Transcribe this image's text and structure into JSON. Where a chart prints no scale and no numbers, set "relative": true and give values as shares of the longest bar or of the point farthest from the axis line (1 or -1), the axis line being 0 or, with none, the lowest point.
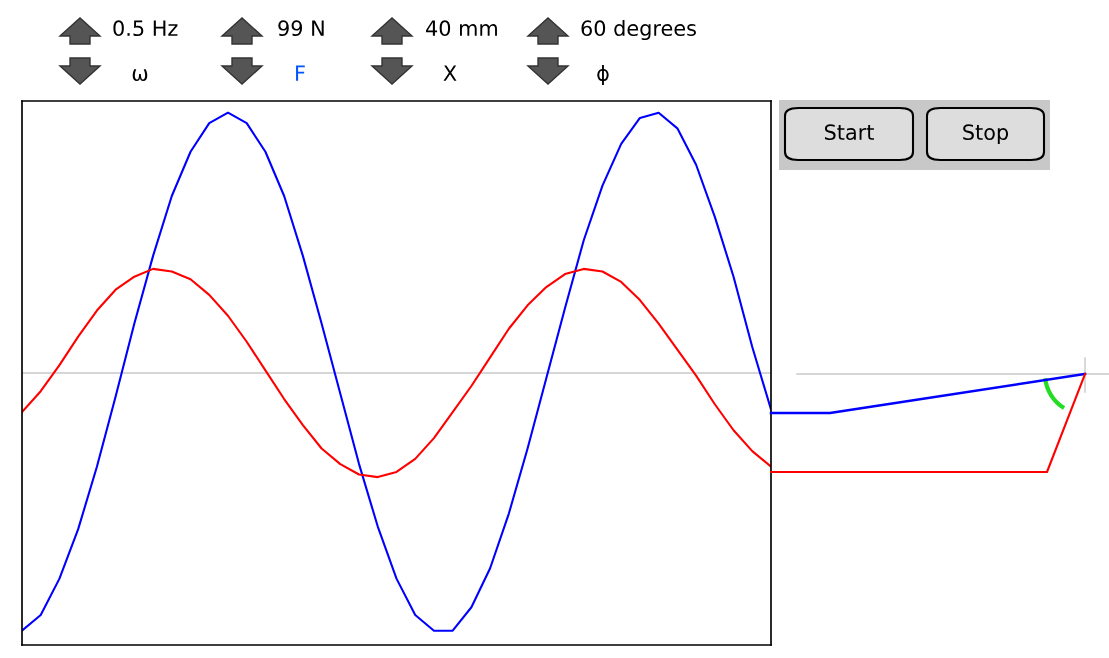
{
  "chart_data": {
    "type": "line",
    "relative": true,
    "categories": [
      null,
      null,
      null,
      null,
      null,
      null,
      null,
      null,
      null,
      null,
      null,
      null,
      null,
      null,
      null,
      null,
      null,
      null,
      null,
      null,
      null,
      null,
      null,
      null,
      null,
      null,
      null,
      null,
      null,
      null,
      null,
      null,
      null,
      null,
      null,
      null,
      null,
      null,
      null,
      null,
      null
    ],
    "series": [
      {
        "color": "#0000ff",
        "values": [
          -0.99,
          -0.93,
          -0.79,
          -0.6,
          -0.36,
          -0.09,
          0.19,
          0.45,
          0.68,
          0.85,
          0.96,
          1.0,
          0.96,
          0.85,
          0.68,
          0.45,
          0.19,
          -0.08,
          -0.35,
          -0.59,
          -0.79,
          -0.93,
          -0.99,
          -0.99,
          -0.9,
          -0.75,
          -0.54,
          -0.29,
          -0.02,
          0.25,
          0.51,
          0.72,
          0.88,
          0.98,
          1.0,
          0.94,
          0.8,
          0.6,
          0.37,
          0.1,
          -0.14
        ]
      },
      {
        "color": "#ff0000",
        "values": [
          -0.15,
          -0.07,
          0.03,
          0.14,
          0.24,
          0.32,
          0.37,
          0.4,
          0.39,
          0.36,
          0.3,
          0.22,
          0.12,
          0.01,
          -0.1,
          -0.2,
          -0.29,
          -0.35,
          -0.39,
          -0.4,
          -0.38,
          -0.33,
          -0.25,
          -0.15,
          -0.05,
          0.06,
          0.17,
          0.26,
          0.33,
          0.38,
          0.4,
          0.39,
          0.35,
          0.28,
          0.19,
          0.09,
          -0.01,
          -0.12,
          -0.22,
          -0.3,
          -0.36
        ]
      }
    ],
    "ref_lines": [
      {
        "axis": "y",
        "value": 0,
        "color": "#c8c8c8"
      }
    ],
    "grid": false,
    "marker": "none",
    "line_style": "solid",
    "annotations": [
      "0.5 Hz",
      "ω",
      "99 N",
      "F",
      "40 mm",
      "X",
      "60 degrees",
      "ϕ",
      "Start",
      "Stop"
    ]
  }
}
